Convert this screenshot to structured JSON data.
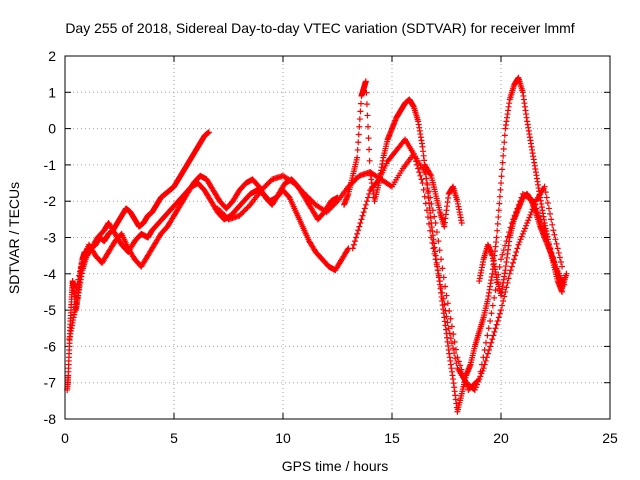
{
  "chart_data": {
    "type": "scatter",
    "title": "Day 255 of 2018, Sidereal Day-to-day VTEC variation (SDTVAR) for receiver lmmf",
    "xlabel": "GPS time / hours",
    "ylabel": "SDTVAR / TECUs",
    "xlim": [
      0,
      25
    ],
    "ylim": [
      -8,
      2
    ],
    "xticks": [
      0,
      5,
      10,
      15,
      20,
      25
    ],
    "yticks": [
      -8,
      -7,
      -6,
      -5,
      -4,
      -3,
      -2,
      -1,
      0,
      1,
      2
    ],
    "grid": true,
    "marker": "+",
    "color": "#ff0000",
    "series": [
      {
        "x": [
          0.1,
          0.15,
          0.2,
          0.25,
          0.3,
          0.35,
          0.4,
          0.5,
          0.6,
          0.7,
          0.8,
          0.9,
          1.0,
          1.2,
          1.4,
          1.6,
          1.8,
          2.0,
          2.2,
          2.4,
          2.6,
          2.8,
          3.0,
          3.2,
          3.4,
          3.6,
          3.8,
          4.0,
          4.2,
          4.4,
          4.6,
          4.8,
          5.0,
          5.2,
          5.4,
          5.6,
          5.8,
          6.0,
          6.2,
          6.4,
          6.6
        ],
        "y": [
          -7.2,
          -6.8,
          -6.0,
          -5.3,
          -4.7,
          -4.2,
          -4.4,
          -5.0,
          -4.6,
          -4.0,
          -3.6,
          -3.4,
          -3.5,
          -3.3,
          -3.2,
          -3.0,
          -3.1,
          -2.9,
          -2.8,
          -2.6,
          -2.4,
          -2.2,
          -2.3,
          -2.5,
          -2.7,
          -2.6,
          -2.4,
          -2.3,
          -2.1,
          -1.9,
          -1.8,
          -1.7,
          -1.6,
          -1.4,
          -1.2,
          -1.0,
          -0.8,
          -0.6,
          -0.4,
          -0.2,
          -0.1
        ]
      },
      {
        "x": [
          0.2,
          0.4,
          0.6,
          0.8,
          1.0,
          1.2,
          1.5,
          1.8,
          2.0,
          2.3,
          2.6,
          2.9,
          3.2,
          3.5,
          3.8,
          4.0,
          4.3,
          4.6,
          4.9,
          5.2,
          5.5,
          5.8,
          6.1,
          6.4,
          6.7,
          7.0,
          7.3,
          7.6,
          7.9,
          8.2,
          8.5,
          8.8,
          9.1,
          9.4,
          9.7,
          10.0,
          10.3,
          10.6,
          10.9,
          11.2,
          11.5,
          11.8,
          12.1,
          12.4,
          12.7,
          13.0
        ],
        "y": [
          -5.8,
          -5.2,
          -4.6,
          -3.9,
          -3.5,
          -3.3,
          -3.0,
          -2.8,
          -2.6,
          -2.9,
          -3.2,
          -3.4,
          -3.1,
          -2.9,
          -3.0,
          -2.8,
          -2.6,
          -2.4,
          -2.2,
          -2.0,
          -1.8,
          -1.6,
          -1.5,
          -1.7,
          -2.0,
          -2.3,
          -2.5,
          -2.4,
          -2.2,
          -2.0,
          -1.8,
          -1.7,
          -1.8,
          -2.0,
          -1.9,
          -1.7,
          -1.9,
          -2.3,
          -2.7,
          -3.1,
          -3.4,
          -3.6,
          -3.8,
          -3.9,
          -3.6,
          -3.3
        ]
      },
      {
        "x": [
          0.5,
          0.8,
          1.1,
          1.4,
          1.7,
          2.0,
          2.3,
          2.6,
          2.9,
          3.2,
          3.5,
          3.8,
          4.1,
          4.4,
          4.7,
          5.0,
          5.3,
          5.6,
          5.9,
          6.2,
          6.5,
          6.8,
          7.1,
          7.4,
          7.7,
          8.0,
          8.3,
          8.6,
          8.9,
          9.2,
          9.5,
          9.8,
          10.1,
          10.4,
          10.7,
          11.0,
          11.3,
          11.6,
          11.9,
          12.2,
          12.5
        ],
        "y": [
          -4.5,
          -3.6,
          -3.2,
          -3.5,
          -3.7,
          -3.4,
          -3.1,
          -2.9,
          -3.3,
          -3.6,
          -3.8,
          -3.5,
          -3.2,
          -2.9,
          -2.7,
          -2.4,
          -2.1,
          -1.8,
          -1.5,
          -1.3,
          -1.4,
          -1.7,
          -2.0,
          -2.2,
          -2.0,
          -1.7,
          -1.5,
          -1.4,
          -1.6,
          -1.9,
          -2.1,
          -1.8,
          -1.5,
          -1.4,
          -1.6,
          -1.9,
          -2.2,
          -2.5,
          -2.3,
          -2.0,
          -1.9
        ]
      },
      {
        "x": [
          7.0,
          7.5,
          8.0,
          8.5,
          9.0,
          9.5,
          10.0,
          10.5,
          11.0,
          11.5,
          12.0,
          12.5,
          13.0,
          13.5,
          14.0,
          14.5,
          15.0,
          15.5,
          16.0,
          16.5,
          17.0,
          17.5,
          18.0,
          18.5,
          19.0,
          19.5,
          20.0,
          20.5,
          21.0,
          21.5,
          22.0,
          22.5,
          22.9
        ],
        "y": [
          -2.2,
          -2.5,
          -2.4,
          -2.1,
          -1.7,
          -1.4,
          -1.3,
          -1.5,
          -1.8,
          -2.1,
          -2.3,
          -2.0,
          -1.6,
          -1.3,
          -1.2,
          -1.4,
          -1.6,
          -1.1,
          -0.7,
          -1.2,
          -2.6,
          -4.6,
          -6.3,
          -7.2,
          -6.9,
          -5.3,
          -3.6,
          -2.6,
          -1.8,
          -2.0,
          -2.8,
          -3.8,
          -4.3
        ]
      },
      {
        "x": [
          12.8,
          13.0,
          13.2,
          13.4,
          13.6,
          13.7,
          13.8,
          14.0,
          14.2,
          14.4,
          14.6,
          14.8,
          15.0,
          15.2,
          15.4,
          15.6,
          15.8,
          16.0,
          16.2,
          16.4,
          16.6,
          16.8,
          17.0,
          17.2,
          17.4,
          17.6,
          17.8,
          18.0,
          18.2,
          18.4,
          18.6,
          18.8,
          19.0,
          19.2,
          19.4,
          19.6,
          19.8,
          20.0,
          20.2,
          20.4,
          20.6,
          20.8,
          21.0,
          21.2,
          21.4,
          21.6,
          21.8,
          22.0,
          22.2,
          22.4,
          22.6,
          22.8
        ],
        "y": [
          -2.1,
          -1.8,
          -1.3,
          -0.8,
          0.9,
          1.1,
          1.3,
          -1.2,
          -2.0,
          -1.5,
          -0.8,
          -0.3,
          0.0,
          0.3,
          0.5,
          0.7,
          0.8,
          0.6,
          0.2,
          -0.5,
          -1.5,
          -2.6,
          -3.5,
          -4.3,
          -5.2,
          -6.1,
          -6.9,
          -7.8,
          -7.3,
          -6.8,
          -6.5,
          -6.0,
          -5.6,
          -5.2,
          -4.7,
          -4.0,
          -3.0,
          -1.5,
          0.0,
          0.8,
          1.2,
          1.4,
          1.0,
          0.2,
          -0.5,
          -1.2,
          -1.9,
          -2.6,
          -3.2,
          -3.7,
          -4.2,
          -4.5
        ]
      },
      {
        "x": [
          13.2,
          13.6,
          14.0,
          14.4,
          14.8,
          15.2,
          15.6,
          16.0,
          16.4,
          16.8,
          17.2,
          17.6,
          18.0,
          18.4,
          18.8,
          19.2,
          19.6,
          20.0,
          20.4,
          20.8,
          21.2,
          21.6,
          22.0,
          22.4,
          22.8
        ],
        "y": [
          -3.3,
          -2.5,
          -1.7,
          -1.4,
          -0.9,
          -0.6,
          -0.3,
          -0.7,
          -1.5,
          -3.0,
          -4.2,
          -5.5,
          -6.6,
          -7.0,
          -7.2,
          -6.6,
          -5.8,
          -5.0,
          -4.0,
          -3.2,
          -2.6,
          -2.0,
          -1.6,
          -2.8,
          -3.8
        ]
      },
      {
        "x": [
          16.5,
          16.8,
          17.0,
          17.2,
          17.4,
          17.6,
          17.8,
          18.0,
          18.2
        ],
        "y": [
          -1.0,
          -1.3,
          -1.8,
          -2.3,
          -2.7,
          -1.8,
          -1.6,
          -2.0,
          -2.6
        ]
      },
      {
        "x": [
          19.0,
          19.2,
          19.4,
          19.6,
          19.8,
          20.0,
          20.2,
          20.4,
          20.6,
          20.8,
          21.0,
          21.2,
          21.4,
          21.6,
          21.8,
          22.0,
          22.2,
          22.4,
          22.6,
          22.8,
          23.0
        ],
        "y": [
          -4.2,
          -3.6,
          -3.2,
          -3.5,
          -4.1,
          -4.6,
          -3.9,
          -3.0,
          -2.5,
          -2.2,
          -1.9,
          -1.8,
          -2.0,
          -2.3,
          -2.7,
          -3.0,
          -3.3,
          -3.6,
          -4.0,
          -4.4,
          -4.0
        ]
      }
    ]
  }
}
